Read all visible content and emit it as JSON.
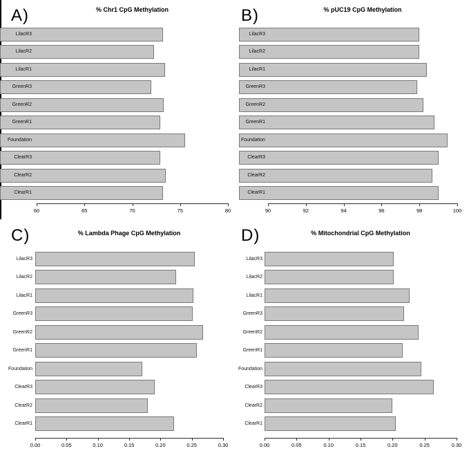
{
  "figure": {
    "background": "#ffffff",
    "bar_fill": "#c5c5c5",
    "bar_border": "#7a7a7a",
    "axis_color": "#2b2b2b",
    "text_color": "#000000"
  },
  "chart_data": [
    {
      "id": "A",
      "panel_label": "A)",
      "type": "bar",
      "orientation": "horizontal",
      "title": "% Chr1 CpG Methylation",
      "categories": [
        "LilacR3",
        "LilacR2",
        "LilacR1",
        "GreenR3",
        "GreenR2",
        "GreenR1",
        "Foundation",
        "ClearR3",
        "ClearR2",
        "ClearR1"
      ],
      "values": [
        73.2,
        72.3,
        73.4,
        72.0,
        73.3,
        72.9,
        75.5,
        72.9,
        73.5,
        73.2
      ],
      "xlim": [
        60,
        80
      ],
      "xtick_values": [
        60,
        65,
        70,
        75,
        80
      ],
      "xtick_labels": [
        "60",
        "65",
        "70",
        "75",
        "80"
      ],
      "bars_anchor": "panel-left-edge",
      "grid": false,
      "legend": false
    },
    {
      "id": "B",
      "panel_label": "B)",
      "type": "bar",
      "orientation": "horizontal",
      "title": "% pUC19 CpG Methylation",
      "categories": [
        "LilacR3",
        "LilacR2",
        "LilacR1",
        "GreenR3",
        "GreenR2",
        "GreenR1",
        "Foundation",
        "ClearR3",
        "ClearR2",
        "ClearR1"
      ],
      "values": [
        98.0,
        98.0,
        98.4,
        97.9,
        98.2,
        98.8,
        99.5,
        99.0,
        98.7,
        99.0
      ],
      "xlim": [
        90,
        100
      ],
      "xtick_values": [
        90,
        92,
        94,
        96,
        98,
        100
      ],
      "xtick_labels": [
        "90",
        "92",
        "94",
        "96",
        "98",
        "100"
      ],
      "bars_anchor": "panel-left-edge",
      "grid": false,
      "legend": false
    },
    {
      "id": "C",
      "panel_label": "C)",
      "type": "bar",
      "orientation": "horizontal",
      "title": "% Lambda Phage CpG Methylation",
      "categories": [
        "LilacR3",
        "LilacR2",
        "LilacR1",
        "GreenR3",
        "GreenR2",
        "GreenR1",
        "Foundation",
        "ClearR3",
        "ClearR2",
        "ClearR1"
      ],
      "values": [
        0.255,
        0.225,
        0.253,
        0.252,
        0.268,
        0.258,
        0.171,
        0.191,
        0.18,
        0.222
      ],
      "xlim": [
        0.0,
        0.3
      ],
      "xtick_values": [
        0.0,
        0.05,
        0.1,
        0.15,
        0.2,
        0.25,
        0.3
      ],
      "xtick_labels": [
        "0.00",
        "0.05",
        "0.10",
        "0.15",
        "0.20",
        "0.25",
        "0.30"
      ],
      "bars_anchor": "zero",
      "grid": false,
      "legend": false
    },
    {
      "id": "D",
      "panel_label": "D)",
      "type": "bar",
      "orientation": "horizontal",
      "title": "% Mitochondrial CpG Methylation",
      "categories": [
        "LilacR3",
        "LilacR2",
        "LilacR1",
        "GreenR3",
        "GreenR2",
        "GreenR1",
        "Foundation",
        "ClearR3",
        "ClearR2",
        "ClearR1"
      ],
      "values": [
        0.202,
        0.202,
        0.227,
        0.218,
        0.241,
        0.216,
        0.245,
        0.264,
        0.2,
        0.205
      ],
      "xlim": [
        0.0,
        0.3
      ],
      "xtick_values": [
        0.0,
        0.05,
        0.1,
        0.15,
        0.2,
        0.25,
        0.3
      ],
      "xtick_labels": [
        "0.00",
        "0.05",
        "0.10",
        "0.15",
        "0.20",
        "0.25",
        "0.30"
      ],
      "bars_anchor": "zero",
      "grid": false,
      "legend": false
    }
  ]
}
